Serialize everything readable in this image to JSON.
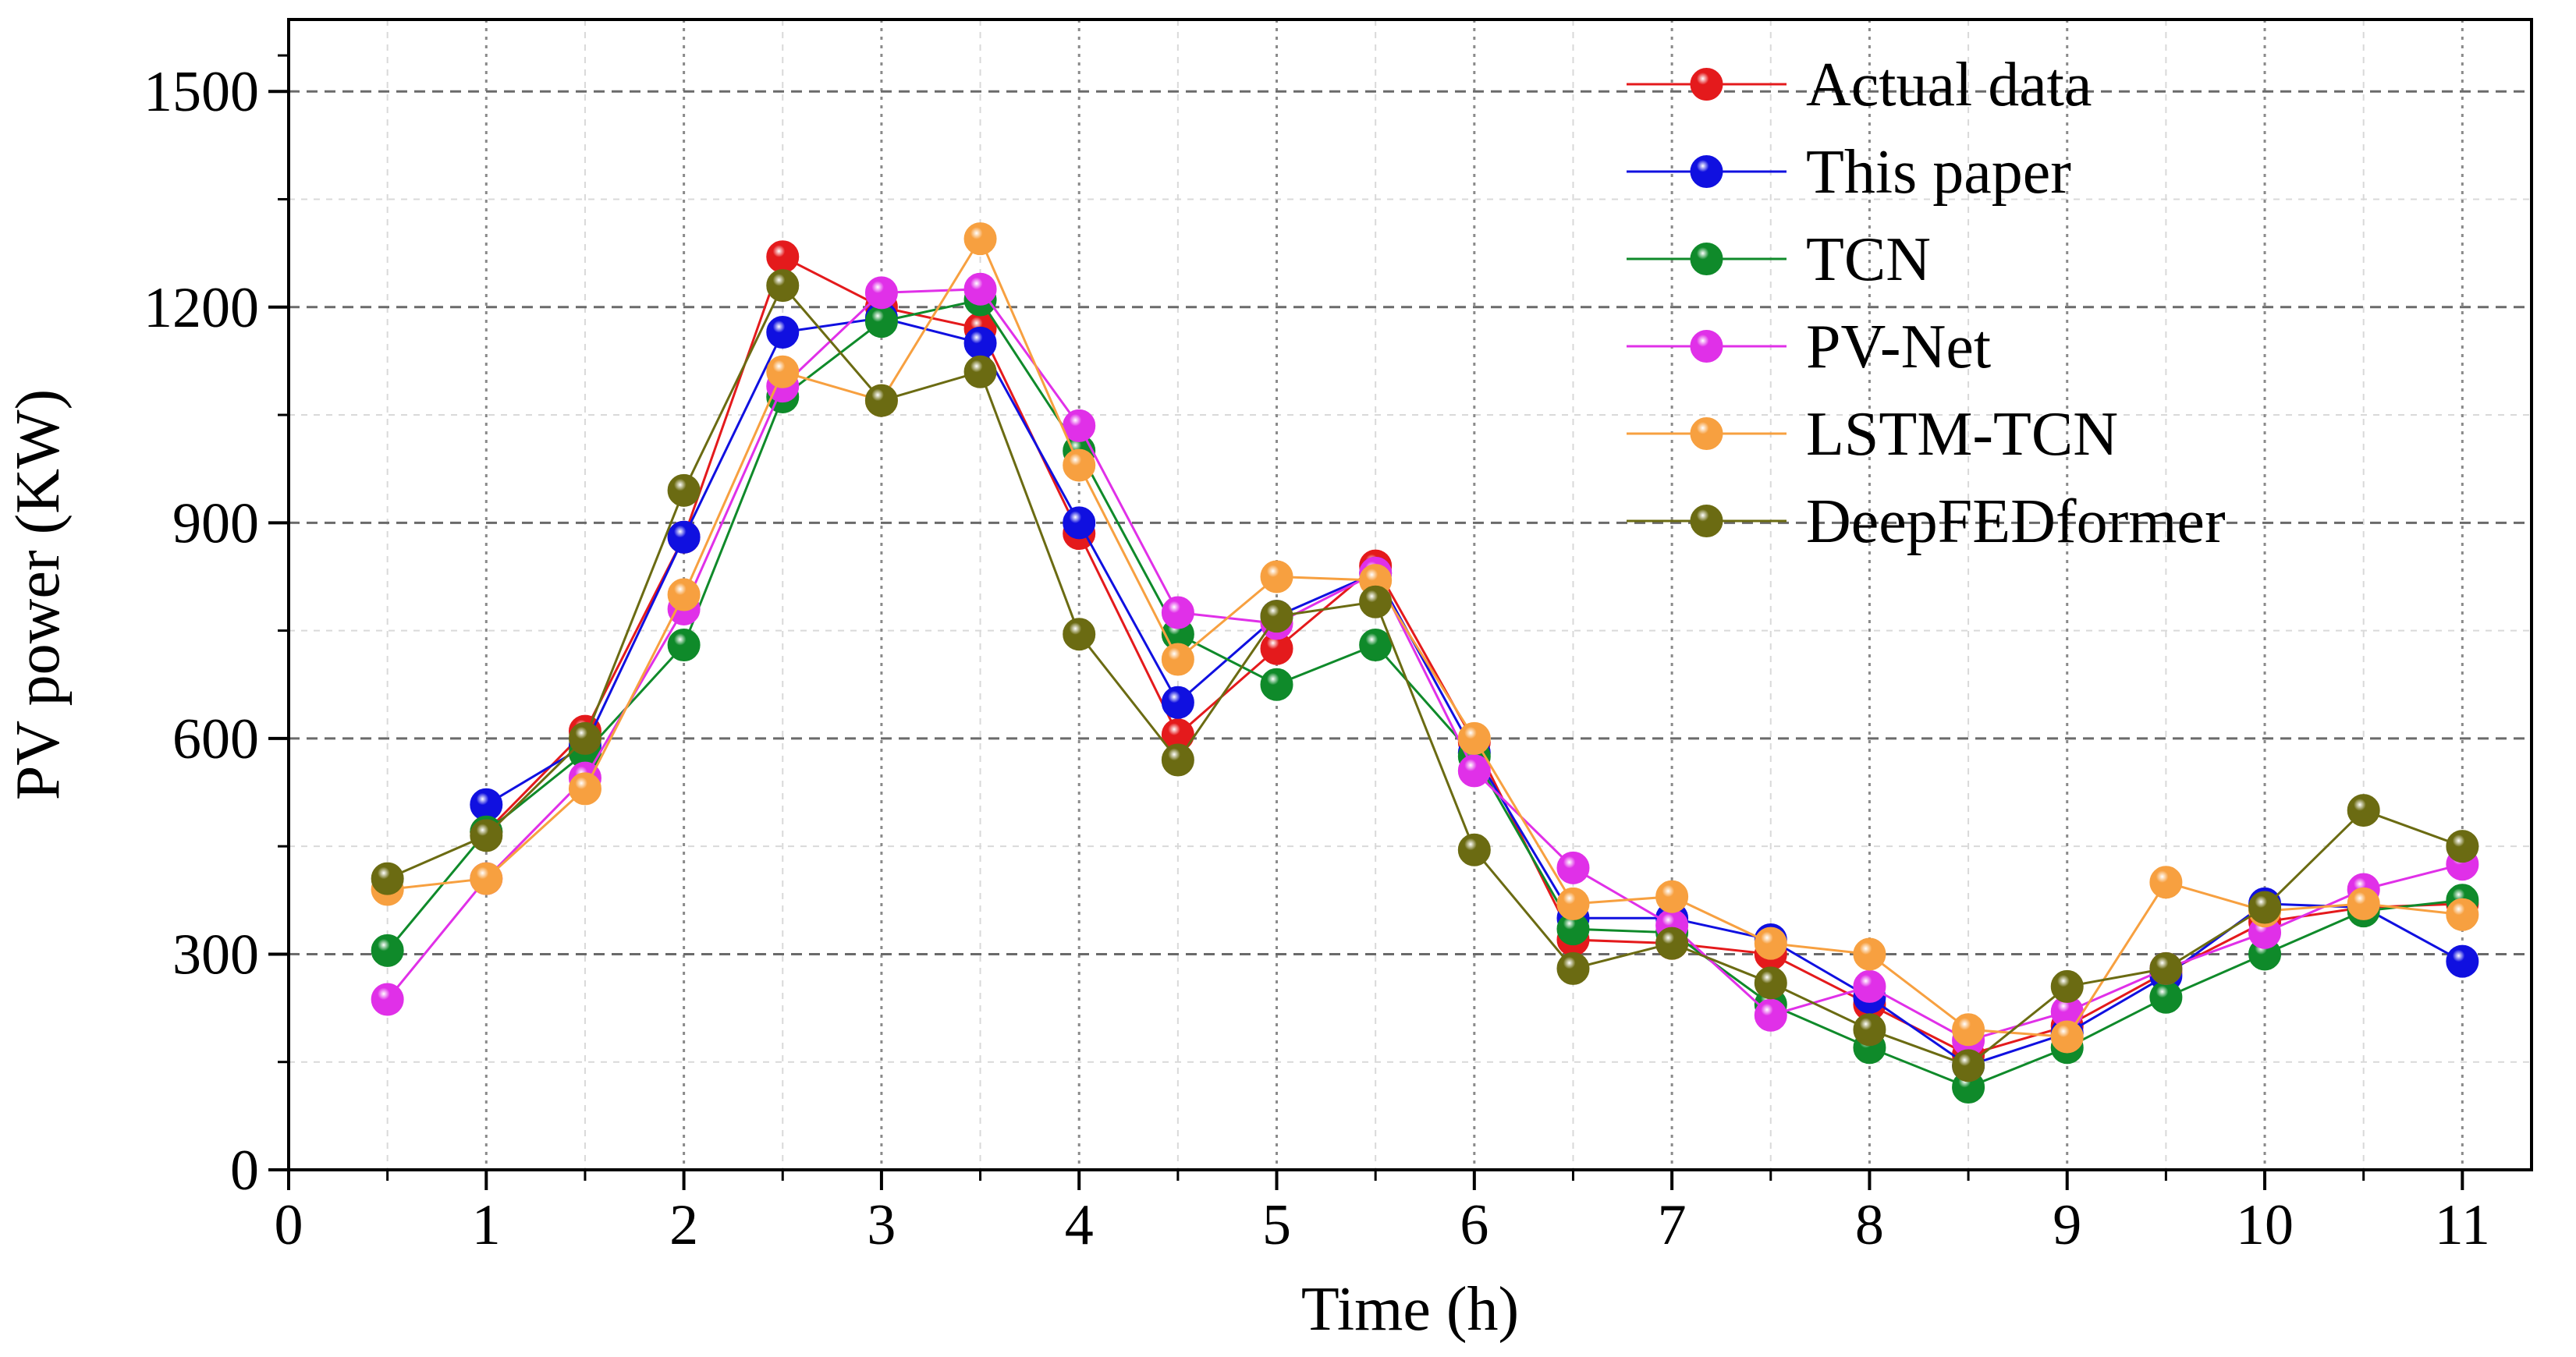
{
  "chart_data": {
    "type": "line",
    "title": "",
    "xlabel": "Time (h)",
    "ylabel": "PV power (KW)",
    "xlim": [
      0,
      11.35
    ],
    "ylim": [
      0,
      1600
    ],
    "xticks": [
      0,
      1,
      2,
      3,
      4,
      5,
      6,
      7,
      8,
      9,
      10,
      11
    ],
    "yticks": [
      0,
      300,
      600,
      900,
      1200,
      1500
    ],
    "grid": true,
    "legend_position": "top-right",
    "x": [
      0.5,
      1,
      1.5,
      2,
      2.5,
      3,
      3.5,
      4,
      4.5,
      5,
      5.5,
      6,
      6.5,
      7,
      7.5,
      8,
      8.5,
      9,
      9.5,
      10,
      10.5,
      11
    ],
    "series": [
      {
        "name": "Actual data",
        "color": "#e41a1c",
        "values": [
          null,
          470,
          610,
          880,
          1270,
          1200,
          1170,
          885,
          605,
          725,
          840,
          595,
          320,
          315,
          300,
          230,
          160,
          200,
          275,
          345,
          365,
          370
        ]
      },
      {
        "name": "This paper",
        "color": "#1010e0",
        "values": [
          null,
          508,
          590,
          880,
          1165,
          1185,
          1150,
          900,
          650,
          770,
          830,
          580,
          350,
          350,
          320,
          240,
          145,
          190,
          270,
          370,
          365,
          290
        ]
      },
      {
        "name": "TCN",
        "color": "#0f8a2a",
        "values": [
          305,
          470,
          580,
          730,
          1075,
          1180,
          1210,
          1000,
          745,
          675,
          730,
          575,
          335,
          330,
          230,
          170,
          115,
          170,
          240,
          300,
          360,
          375
        ]
      },
      {
        "name": "PV-Net",
        "color": "#e030e8",
        "values": [
          237,
          405,
          545,
          780,
          1090,
          1220,
          1225,
          1035,
          775,
          760,
          830,
          555,
          420,
          340,
          215,
          255,
          180,
          220,
          280,
          330,
          390,
          425
        ]
      },
      {
        "name": "LSTM-TCN",
        "color": "#f7a040",
        "values": [
          390,
          405,
          530,
          800,
          1110,
          1070,
          1295,
          980,
          710,
          825,
          820,
          600,
          370,
          380,
          315,
          300,
          195,
          185,
          400,
          360,
          370,
          355
        ]
      },
      {
        "name": "DeepFEDformer",
        "color": "#6b6b12",
        "values": [
          405,
          465,
          600,
          945,
          1230,
          1070,
          1110,
          745,
          570,
          770,
          790,
          445,
          280,
          315,
          260,
          195,
          145,
          255,
          280,
          365,
          500,
          450
        ]
      }
    ]
  }
}
